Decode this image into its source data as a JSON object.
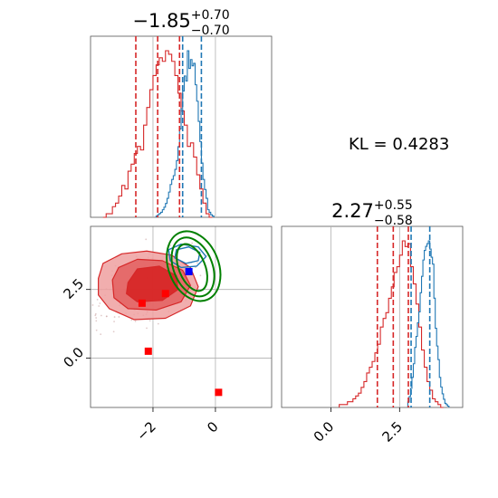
{
  "chart_data": {
    "type": "corner",
    "kl_label": "KL = 0.4283",
    "colors": {
      "red": "#d62728",
      "blue": "#1f77b4",
      "green": "#008000",
      "marker_red": "#ff0000",
      "marker_blue": "#0000ff",
      "grid": "#b0b0b0"
    },
    "param1": {
      "title": {
        "main": "−1.85",
        "sup": "+0.70",
        "sub": "−0.70"
      },
      "range": [
        -4.0,
        1.8
      ],
      "ticks": [
        -2,
        0
      ],
      "tick_labels": [
        "−2",
        "0"
      ],
      "red_quantiles": [
        -2.55,
        -1.85,
        -1.15
      ],
      "blue_quantiles": [
        -1.05,
        -0.45
      ],
      "red_hist": {
        "bin_start": -3.6,
        "bin_width": 0.1,
        "counts": [
          0,
          1,
          1,
          3,
          4,
          6,
          9,
          8,
          13,
          15,
          18,
          20,
          19,
          26,
          31,
          36,
          40,
          43,
          45,
          44,
          47,
          46,
          44,
          40,
          35,
          30,
          26,
          20,
          21,
          17,
          12,
          8,
          4,
          1,
          0
        ]
      },
      "blue_hist": {
        "bin_start": -1.9,
        "bin_width": 0.05,
        "counts": [
          1,
          2,
          3,
          4,
          6,
          8,
          11,
          15,
          20,
          26,
          30,
          33,
          38,
          45,
          56,
          70,
          86,
          100,
          112,
          108,
          132,
          118,
          125,
          120,
          122,
          105,
          92,
          76,
          60,
          43,
          30,
          22,
          15,
          6,
          4,
          2,
          1
        ]
      }
    },
    "param2": {
      "title": {
        "main": "2.27",
        "sup": "+0.55",
        "sub": "−0.58"
      },
      "range": [
        -1.8,
        4.8
      ],
      "ticks": [
        0.0,
        2.5
      ],
      "tick_labels": [
        "0.0",
        "2.5"
      ],
      "red_quantiles": [
        1.69,
        2.27,
        2.82
      ],
      "blue_quantiles": [
        2.92,
        3.6
      ],
      "red_hist": {
        "bin_start": 0.3,
        "bin_width": 0.1,
        "counts": [
          1,
          1,
          1,
          2,
          2,
          3,
          4,
          5,
          7,
          9,
          12,
          14,
          16,
          19,
          22,
          28,
          31,
          33,
          38,
          42,
          47,
          49,
          53,
          58,
          56,
          57,
          49,
          43,
          36,
          28,
          20,
          14,
          9,
          6,
          3,
          2,
          1,
          0
        ]
      },
      "blue_hist": {
        "bin_start": 2.8,
        "bin_width": 0.05,
        "counts": [
          4,
          8,
          14,
          22,
          32,
          44,
          52,
          62,
          70,
          84,
          96,
          108,
          115,
          118,
          120,
          122,
          116,
          110,
          105,
          80,
          58,
          45,
          35,
          22,
          15,
          10,
          6,
          3,
          2,
          1
        ]
      }
    },
    "joint": {
      "red_contours": [
        [
          [
            -3.75,
            2.9
          ],
          [
            -3.6,
            3.45
          ],
          [
            -3.0,
            3.8
          ],
          [
            -2.2,
            3.9
          ],
          [
            -1.4,
            3.75
          ],
          [
            -0.8,
            3.3
          ],
          [
            -0.55,
            2.6
          ],
          [
            -0.8,
            1.9
          ],
          [
            -1.6,
            1.45
          ],
          [
            -2.6,
            1.4
          ],
          [
            -3.4,
            1.8
          ],
          [
            -3.75,
            2.3
          ]
        ],
        [
          [
            -3.3,
            2.85
          ],
          [
            -3.1,
            3.3
          ],
          [
            -2.5,
            3.6
          ],
          [
            -1.7,
            3.55
          ],
          [
            -1.05,
            3.2
          ],
          [
            -0.8,
            2.65
          ],
          [
            -1.1,
            2.05
          ],
          [
            -1.9,
            1.75
          ],
          [
            -2.8,
            1.8
          ],
          [
            -3.25,
            2.2
          ]
        ],
        [
          [
            -2.8,
            2.75
          ],
          [
            -2.5,
            3.25
          ],
          [
            -1.8,
            3.35
          ],
          [
            -1.25,
            3.0
          ],
          [
            -1.2,
            2.5
          ],
          [
            -1.7,
            2.1
          ],
          [
            -2.5,
            2.05
          ],
          [
            -2.85,
            2.35
          ]
        ]
      ],
      "blue_contours": [
        [
          [
            -1.45,
            3.55
          ],
          [
            -1.5,
            3.95
          ],
          [
            -1.1,
            4.15
          ],
          [
            -0.55,
            4.05
          ],
          [
            -0.3,
            3.7
          ],
          [
            -0.6,
            3.35
          ],
          [
            -1.1,
            3.3
          ]
        ],
        [
          [
            -1.3,
            3.65
          ],
          [
            -1.25,
            3.95
          ],
          [
            -0.85,
            4.05
          ],
          [
            -0.5,
            3.85
          ],
          [
            -0.55,
            3.55
          ],
          [
            -0.95,
            3.45
          ]
        ]
      ],
      "green_ellipses": [
        {
          "cx": -0.75,
          "cy": 3.3,
          "rx": 0.42,
          "ry": 0.9,
          "rot_deg": -22
        },
        {
          "cx": -0.72,
          "cy": 3.32,
          "rx": 0.62,
          "ry": 1.12,
          "rot_deg": -22
        },
        {
          "cx": -0.7,
          "cy": 3.35,
          "rx": 0.8,
          "ry": 1.32,
          "rot_deg": -22
        }
      ],
      "red_markers": [
        [
          -2.35,
          2.0
        ],
        [
          -1.6,
          2.35
        ],
        [
          -2.15,
          0.25
        ],
        [
          0.1,
          -1.25
        ]
      ],
      "blue_marker": [
        -0.85,
        3.15
      ]
    }
  }
}
